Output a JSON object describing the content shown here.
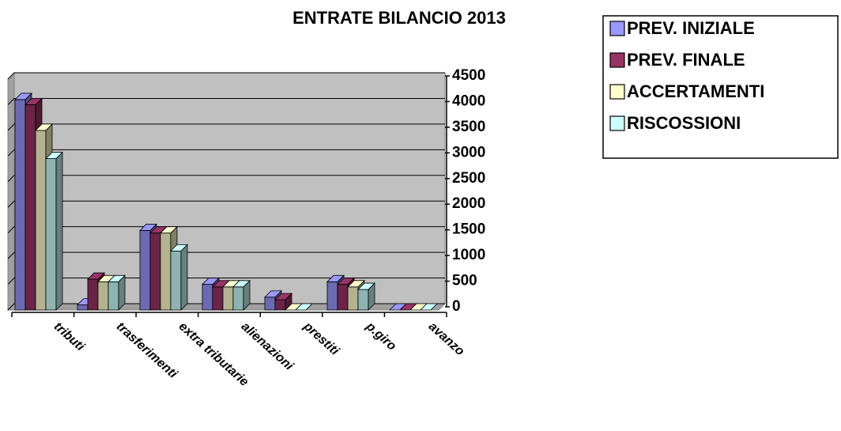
{
  "chart_data": {
    "type": "bar",
    "title": "ENTRATE BILANCIO 2013",
    "categories": [
      "tributi",
      "trasferimenti",
      "extra tributarie",
      "alienazioni",
      "prestiti",
      "p.giro",
      "avanzo"
    ],
    "series": [
      {
        "name": "PREV. INIZIALE",
        "color": "#9999ff",
        "values": [
          4100,
          100,
          1550,
          500,
          250,
          550,
          0
        ]
      },
      {
        "name": "PREV. FINALE",
        "color": "#993366",
        "values": [
          4000,
          600,
          1500,
          450,
          200,
          500,
          0
        ]
      },
      {
        "name": "ACCERTAMENTI",
        "color": "#ffffcc",
        "values": [
          3500,
          550,
          1500,
          450,
          0,
          450,
          0
        ]
      },
      {
        "name": "RISCOSSIONI",
        "color": "#ccffff",
        "values": [
          2950,
          550,
          1150,
          450,
          0,
          400,
          0
        ]
      }
    ],
    "ylim": [
      0,
      4500
    ],
    "yticks": [
      0,
      500,
      1000,
      1500,
      2000,
      2500,
      3000,
      3500,
      4000,
      4500
    ],
    "grid": true,
    "legend": "right"
  }
}
